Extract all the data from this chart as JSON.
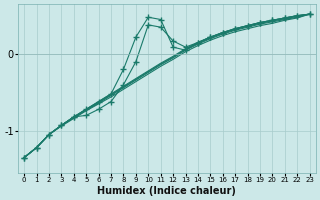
{
  "xlabel": "Humidex (Indice chaleur)",
  "bg_color": "#cce8e8",
  "line_color": "#1a7a6a",
  "xlim": [
    -0.5,
    23.5
  ],
  "ylim": [
    -1.55,
    0.65
  ],
  "yticks": [
    -1,
    0
  ],
  "xticks": [
    0,
    1,
    2,
    3,
    4,
    5,
    6,
    7,
    8,
    9,
    10,
    11,
    12,
    13,
    14,
    15,
    16,
    17,
    18,
    19,
    20,
    21,
    22,
    23
  ],
  "series": [
    {
      "x": [
        0,
        1,
        2,
        3,
        4,
        5,
        6,
        7,
        8,
        9,
        10,
        11,
        12,
        13,
        14,
        15,
        16,
        17,
        18,
        19,
        20,
        21,
        22,
        23
      ],
      "y": [
        -1.35,
        -1.22,
        -1.05,
        -0.93,
        -0.82,
        -0.72,
        -0.62,
        -0.52,
        -0.42,
        -0.32,
        -0.22,
        -0.12,
        -0.03,
        0.07,
        0.15,
        0.22,
        0.28,
        0.33,
        0.37,
        0.41,
        0.44,
        0.47,
        0.5,
        0.52
      ],
      "marker": false
    },
    {
      "x": [
        0,
        1,
        2,
        3,
        4,
        5,
        6,
        7,
        8,
        9,
        10,
        11,
        12,
        13,
        14,
        15,
        16,
        17,
        18,
        19,
        20,
        21,
        22,
        23
      ],
      "y": [
        -1.35,
        -1.22,
        -1.05,
        -0.93,
        -0.82,
        -0.72,
        -0.63,
        -0.53,
        -0.43,
        -0.33,
        -0.23,
        -0.13,
        -0.04,
        0.06,
        0.14,
        0.21,
        0.27,
        0.32,
        0.36,
        0.4,
        0.43,
        0.46,
        0.49,
        0.52
      ],
      "marker": false
    },
    {
      "x": [
        0,
        1,
        2,
        3,
        4,
        5,
        6,
        7,
        8,
        9,
        10,
        11,
        12,
        13,
        14,
        15,
        16,
        17,
        18,
        19,
        20,
        21,
        22,
        23
      ],
      "y": [
        -1.35,
        -1.22,
        -1.05,
        -0.93,
        -0.83,
        -0.73,
        -0.64,
        -0.54,
        -0.44,
        -0.34,
        -0.24,
        -0.14,
        -0.05,
        0.05,
        0.13,
        0.2,
        0.26,
        0.31,
        0.35,
        0.39,
        0.42,
        0.45,
        0.48,
        0.52
      ],
      "marker": false
    },
    {
      "x": [
        0,
        1,
        2,
        3,
        4,
        5,
        6,
        7,
        8,
        9,
        10,
        11,
        12,
        13,
        14,
        15,
        16,
        17,
        18,
        19,
        20,
        21,
        22,
        23
      ],
      "y": [
        -1.35,
        -1.22,
        -1.05,
        -0.94,
        -0.84,
        -0.74,
        -0.65,
        -0.56,
        -0.46,
        -0.36,
        -0.26,
        -0.16,
        -0.07,
        0.03,
        0.11,
        0.18,
        0.24,
        0.29,
        0.33,
        0.37,
        0.4,
        0.44,
        0.47,
        0.52
      ],
      "marker": false
    },
    {
      "x": [
        0,
        1,
        2,
        3,
        4,
        5,
        6,
        7,
        8,
        9,
        10,
        11,
        12,
        13,
        14,
        15,
        16,
        17,
        18,
        19,
        20,
        21,
        22,
        23
      ],
      "y": [
        -1.35,
        -1.22,
        -1.05,
        -0.93,
        -0.82,
        -0.8,
        -0.72,
        -0.62,
        -0.4,
        -0.1,
        0.38,
        0.35,
        0.17,
        0.09,
        0.15,
        0.22,
        0.28,
        0.33,
        0.37,
        0.41,
        0.44,
        0.47,
        0.5,
        0.52
      ],
      "marker": true
    },
    {
      "x": [
        0,
        1,
        2,
        3,
        4,
        5,
        6,
        7,
        8,
        9,
        10,
        11,
        12,
        13,
        14,
        15,
        16,
        17,
        18,
        19,
        20,
        21,
        22,
        23
      ],
      "y": [
        -1.35,
        -1.22,
        -1.05,
        -0.93,
        -0.82,
        -0.72,
        -0.62,
        -0.52,
        -0.2,
        0.22,
        0.48,
        0.45,
        0.09,
        0.05,
        0.15,
        0.22,
        0.28,
        0.33,
        0.37,
        0.41,
        0.44,
        0.47,
        0.5,
        0.52
      ],
      "marker": true
    }
  ]
}
